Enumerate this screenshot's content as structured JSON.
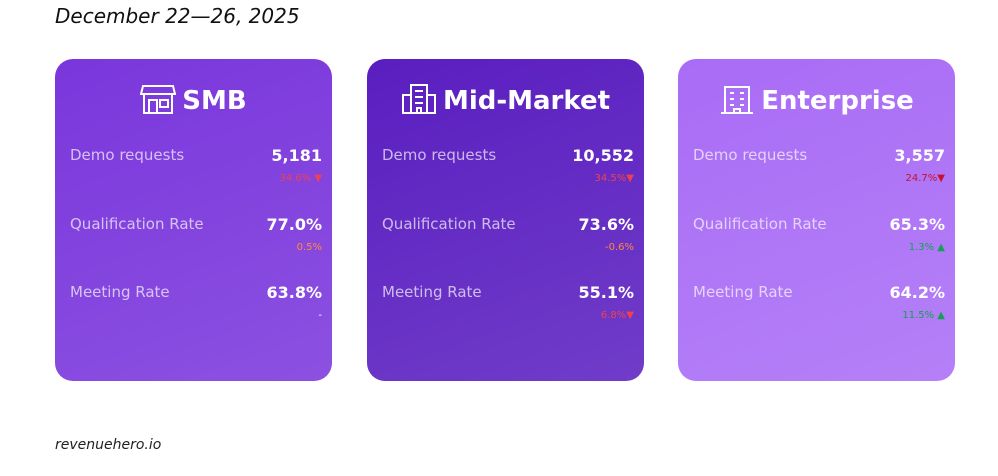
{
  "header": {
    "title": "December 22—26, 2025"
  },
  "cards": [
    {
      "title": "SMB",
      "color": "#7a36dc",
      "metrics": [
        {
          "label": "Demo requests",
          "value": "5,181",
          "change": "34.6% ▼",
          "change_color": "#f0414f"
        },
        {
          "label": "Qualification Rate",
          "value": "77.0%",
          "change": "0.5%",
          "change_color": "#ff8a3d"
        },
        {
          "label": "Meeting Rate",
          "value": "63.8%",
          "change": "-",
          "change_color": "#ffffff"
        }
      ]
    },
    {
      "title": "Mid-Market",
      "color": "#5a1ec0",
      "metrics": [
        {
          "label": "Demo requests",
          "value": "10,552",
          "change": "34.5%▼",
          "change_color": "#f0414f"
        },
        {
          "label": "Qualification Rate",
          "value": "73.6%",
          "change": "-0.6%",
          "change_color": "#ff8a3d"
        },
        {
          "label": "Meeting Rate",
          "value": "55.1%",
          "change": "6.8%▼",
          "change_color": "#f0414f"
        }
      ]
    },
    {
      "title": "Enterprise",
      "color": "#a96cf6",
      "metrics": [
        {
          "label": "Demo requests",
          "value": "3,557",
          "change": "24.7%▼",
          "change_color": "#c8102e"
        },
        {
          "label": "Qualification Rate",
          "value": "65.3%",
          "change": "1.3% ▲",
          "change_color": "#12a150"
        },
        {
          "label": "Meeting Rate",
          "value": "64.2%",
          "change": "11.5% ▲",
          "change_color": "#12a150"
        }
      ]
    }
  ],
  "footer": "revenuehero.io"
}
